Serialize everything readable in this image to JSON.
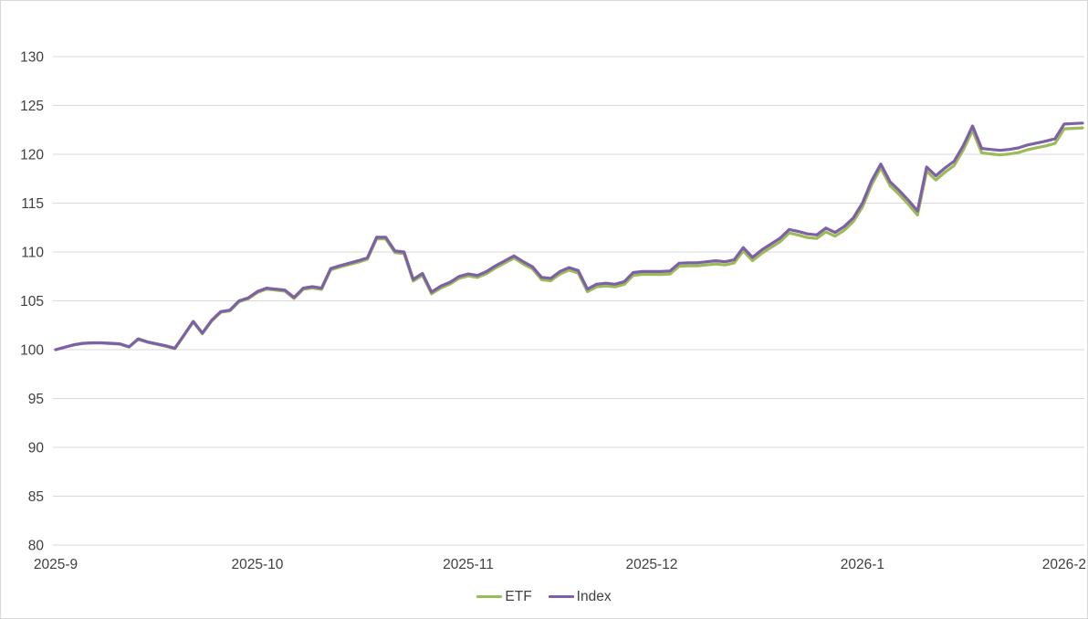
{
  "chart": {
    "background": "#ffffff",
    "border_color": "#d9d9d9",
    "gridline_color": "#d9d9d9",
    "text_color": "#404040",
    "legend": [
      {
        "label": "ETF",
        "color": "#9bbb59"
      },
      {
        "label": "Index",
        "color": "#7d60a5"
      }
    ]
  },
  "chart_data": {
    "type": "line",
    "title": "",
    "xlabel": "",
    "ylabel": "",
    "ylim": [
      80,
      130
    ],
    "yticks": [
      80,
      85,
      90,
      95,
      100,
      105,
      110,
      115,
      120,
      125,
      130
    ],
    "grid": "horizontal",
    "legend_position": "bottom-center",
    "xticks": [
      {
        "index": 0,
        "label": "2025-9"
      },
      {
        "index": 22,
        "label": "2025-10"
      },
      {
        "index": 45,
        "label": "2025-11"
      },
      {
        "index": 65,
        "label": "2025-12"
      },
      {
        "index": 88,
        "label": "2026-1"
      },
      {
        "index": 110,
        "label": "2026-2"
      }
    ],
    "x": [
      "2025-09-01",
      "2025-09-02",
      "2025-09-03",
      "2025-09-04",
      "2025-09-05",
      "2025-09-08",
      "2025-09-09",
      "2025-09-10",
      "2025-09-11",
      "2025-09-12",
      "2025-09-15",
      "2025-09-16",
      "2025-09-17",
      "2025-09-18",
      "2025-09-19",
      "2025-09-22",
      "2025-09-23",
      "2025-09-24",
      "2025-09-25",
      "2025-09-26",
      "2025-09-29",
      "2025-09-30",
      "2025-10-01",
      "2025-10-02",
      "2025-10-03",
      "2025-10-06",
      "2025-10-07",
      "2025-10-08",
      "2025-10-09",
      "2025-10-10",
      "2025-10-13",
      "2025-10-14",
      "2025-10-15",
      "2025-10-16",
      "2025-10-17",
      "2025-10-20",
      "2025-10-21",
      "2025-10-22",
      "2025-10-23",
      "2025-10-24",
      "2025-10-27",
      "2025-10-28",
      "2025-10-29",
      "2025-10-30",
      "2025-10-31",
      "2025-11-03",
      "2025-11-04",
      "2025-11-05",
      "2025-11-06",
      "2025-11-07",
      "2025-11-10",
      "2025-11-11",
      "2025-11-12",
      "2025-11-13",
      "2025-11-14",
      "2025-11-17",
      "2025-11-18",
      "2025-11-19",
      "2025-11-20",
      "2025-11-21",
      "2025-11-24",
      "2025-11-25",
      "2025-11-26",
      "2025-11-27",
      "2025-11-28",
      "2025-12-01",
      "2025-12-02",
      "2025-12-03",
      "2025-12-04",
      "2025-12-05",
      "2025-12-08",
      "2025-12-09",
      "2025-12-10",
      "2025-12-11",
      "2025-12-12",
      "2025-12-15",
      "2025-12-16",
      "2025-12-17",
      "2025-12-18",
      "2025-12-19",
      "2025-12-22",
      "2025-12-23",
      "2025-12-24",
      "2025-12-25",
      "2025-12-26",
      "2025-12-29",
      "2025-12-30",
      "2025-12-31",
      "2026-01-01",
      "2026-01-02",
      "2026-01-05",
      "2026-01-06",
      "2026-01-07",
      "2026-01-08",
      "2026-01-09",
      "2026-01-12",
      "2026-01-13",
      "2026-01-14",
      "2026-01-15",
      "2026-01-16",
      "2026-01-19",
      "2026-01-20",
      "2026-01-21",
      "2026-01-22",
      "2026-01-23",
      "2026-01-26",
      "2026-01-27",
      "2026-01-28",
      "2026-01-29",
      "2026-01-30",
      "2026-02-02",
      "2026-02-03",
      "2026-02-04"
    ],
    "series": [
      {
        "name": "ETF",
        "color": "#9bbb59",
        "values": [
          100.0,
          100.25,
          100.49,
          100.64,
          100.68,
          100.68,
          100.62,
          100.57,
          100.26,
          101.06,
          100.76,
          100.55,
          100.35,
          100.09,
          101.44,
          102.83,
          101.63,
          102.92,
          103.82,
          103.96,
          104.91,
          105.21,
          105.85,
          106.2,
          106.09,
          105.99,
          105.23,
          106.18,
          106.32,
          106.17,
          108.17,
          108.46,
          108.71,
          108.95,
          109.25,
          111.34,
          111.34,
          109.93,
          109.83,
          107.02,
          107.62,
          105.72,
          106.31,
          106.71,
          107.3,
          107.55,
          107.39,
          107.79,
          108.38,
          108.88,
          109.38,
          108.77,
          108.27,
          107.16,
          107.06,
          107.75,
          108.15,
          107.84,
          105.94,
          106.43,
          106.53,
          106.43,
          106.67,
          107.62,
          107.71,
          107.71,
          107.7,
          107.75,
          108.54,
          108.59,
          108.59,
          108.68,
          108.78,
          108.67,
          108.87,
          110.11,
          109.11,
          109.85,
          110.45,
          111.04,
          111.94,
          111.74,
          111.48,
          111.38,
          112.07,
          111.62,
          112.21,
          113.11,
          114.6,
          116.9,
          118.6,
          116.79,
          115.89,
          114.88,
          113.78,
          118.27,
          117.37,
          118.16,
          118.86,
          120.45,
          122.45,
          120.15,
          120.04,
          119.94,
          120.03,
          120.18,
          120.47,
          120.67,
          120.86,
          121.11,
          122.61,
          122.65,
          122.7
        ]
      },
      {
        "name": "Index",
        "color": "#7d60a5",
        "values": [
          100.0,
          100.25,
          100.5,
          100.65,
          100.7,
          100.7,
          100.65,
          100.6,
          100.3,
          101.1,
          100.8,
          100.6,
          100.4,
          100.15,
          101.5,
          102.9,
          101.7,
          103.0,
          103.9,
          104.05,
          105.0,
          105.3,
          105.95,
          106.3,
          106.2,
          106.1,
          105.35,
          106.3,
          106.45,
          106.3,
          108.3,
          108.6,
          108.85,
          109.1,
          109.4,
          111.5,
          111.5,
          110.1,
          110.0,
          107.2,
          107.8,
          105.9,
          106.5,
          106.9,
          107.5,
          107.75,
          107.6,
          108.0,
          108.6,
          109.1,
          109.6,
          109.0,
          108.5,
          107.4,
          107.3,
          108.0,
          108.4,
          108.1,
          106.2,
          106.7,
          106.8,
          106.7,
          106.95,
          107.9,
          108.0,
          108.0,
          108.0,
          108.05,
          108.85,
          108.9,
          108.9,
          109.0,
          109.1,
          109.0,
          109.2,
          110.45,
          109.45,
          110.2,
          110.8,
          111.4,
          112.3,
          112.1,
          111.85,
          111.75,
          112.45,
          112.0,
          112.6,
          113.5,
          115.0,
          117.3,
          119.0,
          117.2,
          116.3,
          115.3,
          114.2,
          118.7,
          117.8,
          118.6,
          119.3,
          120.9,
          122.9,
          120.6,
          120.5,
          120.4,
          120.5,
          120.65,
          120.95,
          121.15,
          121.35,
          121.6,
          123.1,
          123.15,
          123.2
        ]
      }
    ]
  }
}
